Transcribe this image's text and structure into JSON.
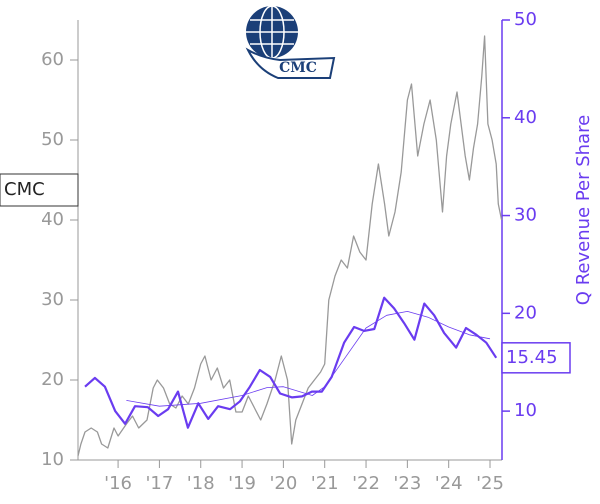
{
  "chart_data": {
    "type": "line",
    "logo_text": "CMC",
    "y2label": "Q Revenue Per Share",
    "xlim": [
      2015.03,
      2025.29
    ],
    "xticks": [
      {
        "value": 2016,
        "label": "'16"
      },
      {
        "value": 2017,
        "label": "'17"
      },
      {
        "value": 2018,
        "label": "'18"
      },
      {
        "value": 2019,
        "label": "'19"
      },
      {
        "value": 2020,
        "label": "'20"
      },
      {
        "value": 2021,
        "label": "'21"
      },
      {
        "value": 2022,
        "label": "'22"
      },
      {
        "value": 2023,
        "label": "'23"
      },
      {
        "value": 2024,
        "label": "'24"
      },
      {
        "value": 2025,
        "label": "'25"
      }
    ],
    "ylim": [
      10,
      65
    ],
    "yticks": [
      10,
      20,
      30,
      40,
      50,
      60
    ],
    "y2lim": [
      5,
      50
    ],
    "y2ticks": [
      10,
      20,
      30,
      40,
      50
    ],
    "series": [
      {
        "name": "CMC",
        "color": "#999999",
        "axis": "y",
        "x": [
          2015.03,
          2015.1,
          2015.2,
          2015.35,
          2015.5,
          2015.6,
          2015.75,
          2015.9,
          2016.0,
          2016.2,
          2016.35,
          2016.5,
          2016.7,
          2016.85,
          2016.95,
          2017.1,
          2017.25,
          2017.4,
          2017.55,
          2017.7,
          2017.85,
          2018.0,
          2018.1,
          2018.25,
          2018.4,
          2018.55,
          2018.7,
          2018.85,
          2019.0,
          2019.15,
          2019.3,
          2019.45,
          2019.6,
          2019.8,
          2019.95,
          2020.1,
          2020.2,
          2020.3,
          2020.45,
          2020.6,
          2020.75,
          2020.9,
          2021.0,
          2021.1,
          2021.25,
          2021.4,
          2021.55,
          2021.7,
          2021.85,
          2022.0,
          2022.15,
          2022.3,
          2022.45,
          2022.55,
          2022.7,
          2022.85,
          2023.0,
          2023.1,
          2023.25,
          2023.4,
          2023.55,
          2023.7,
          2023.85,
          2023.95,
          2024.05,
          2024.2,
          2024.3,
          2024.4,
          2024.5,
          2024.6,
          2024.7,
          2024.8,
          2024.87,
          2024.95,
          2025.05,
          2025.15,
          2025.2,
          2025.28
        ],
        "values": [
          10.5,
          12,
          13.5,
          14,
          13.5,
          12,
          11.5,
          14,
          13,
          14.5,
          15.5,
          14,
          15,
          19,
          20,
          19,
          17,
          16.5,
          18,
          17,
          19,
          22,
          23,
          20,
          21.5,
          19,
          20,
          16,
          16,
          18,
          16.5,
          15,
          17,
          20,
          23,
          20,
          12,
          15,
          17,
          19,
          20,
          21,
          22,
          30,
          33,
          35,
          34,
          38,
          36,
          35,
          42,
          47,
          42,
          38,
          41,
          46,
          55,
          57,
          48,
          52,
          55,
          50,
          41,
          48,
          52,
          56,
          52,
          48,
          45,
          49,
          52,
          58,
          63,
          52,
          50,
          47,
          42,
          40
        ]
      },
      {
        "color": "#6a3cf0",
        "axis": "y2",
        "width": 2.2,
        "x": [
          2015.2,
          2015.44,
          2015.68,
          2015.93,
          2016.17,
          2016.41,
          2016.72,
          2016.97,
          2017.21,
          2017.45,
          2017.69,
          2017.94,
          2018.18,
          2018.42,
          2018.71,
          2018.95,
          2019.19,
          2019.43,
          2019.68,
          2019.92,
          2020.21,
          2020.45,
          2020.69,
          2020.93,
          2021.17,
          2021.47,
          2021.71,
          2021.95,
          2022.2,
          2022.44,
          2022.68,
          2022.92,
          2023.17,
          2023.41,
          2023.65,
          2023.89,
          2024.18,
          2024.42,
          2024.67,
          2024.91,
          2025.15
        ],
        "values": [
          12.5,
          13.4,
          12.5,
          10,
          8.7,
          10.5,
          10.4,
          9.5,
          10.2,
          12,
          8.3,
          10.8,
          9.2,
          10.5,
          10.2,
          11,
          12.5,
          14.2,
          13.5,
          11.8,
          11.4,
          11.5,
          12,
          12,
          13.5,
          17,
          18.6,
          18.2,
          18.4,
          21.6,
          20.5,
          19,
          17.3,
          21,
          19.8,
          18,
          16.5,
          18.5,
          17.8,
          17,
          15.45
        ]
      },
      {
        "color": "#6a3cf0",
        "axis": "y2",
        "width": 0.8,
        "x": [
          2016.2,
          2017.0,
          2018.0,
          2019.0,
          2019.6,
          2020.0,
          2020.7,
          2021.0,
          2021.5,
          2022.0,
          2022.5,
          2023.0,
          2023.5,
          2024.0,
          2024.5,
          2025.0
        ],
        "values": [
          11.1,
          10.5,
          10.8,
          11.6,
          12.4,
          12.5,
          11.6,
          12.5,
          15.5,
          18.5,
          19.8,
          20.2,
          19.6,
          18.6,
          17.8,
          17.4
        ]
      }
    ]
  }
}
